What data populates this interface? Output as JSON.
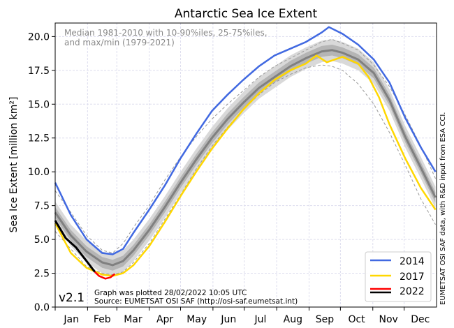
{
  "chart_data": {
    "type": "line",
    "title": "Antarctic Sea Ice Extent",
    "ylabel": "Sea Ice Extent [million km²]",
    "xlabel": "",
    "ylim": [
      0,
      21
    ],
    "xlim_days": [
      0,
      365
    ],
    "grid": true,
    "y_ticks": [
      "0.0",
      "2.5",
      "5.0",
      "7.5",
      "10.0",
      "12.5",
      "15.0",
      "17.5",
      "20.0"
    ],
    "x_tick_labels": [
      "Jan",
      "Feb",
      "Mar",
      "Apr",
      "May",
      "Jun",
      "Jul",
      "Aug",
      "Sep",
      "Oct",
      "Nov",
      "Dec"
    ],
    "climatology_note": [
      "Median 1981-2010 with 10-90%iles, 25-75%iles,",
      "and max/min (1979-2021)"
    ],
    "climatology": {
      "day": [
        0,
        15,
        30,
        45,
        55,
        65,
        75,
        90,
        105,
        120,
        135,
        150,
        165,
        180,
        195,
        210,
        225,
        240,
        255,
        265,
        275,
        290,
        305,
        320,
        335,
        350,
        364
      ],
      "median": [
        7.0,
        5.3,
        4.1,
        3.3,
        3.1,
        3.4,
        4.2,
        5.7,
        7.4,
        9.2,
        10.9,
        12.5,
        13.9,
        15.1,
        16.2,
        17.0,
        17.8,
        18.4,
        18.9,
        19.0,
        18.8,
        18.3,
        17.3,
        15.3,
        12.6,
        10.3,
        8.1
      ],
      "p10": [
        6.2,
        4.5,
        3.3,
        2.5,
        2.3,
        2.6,
        3.4,
        4.9,
        6.6,
        8.4,
        10.1,
        11.7,
        13.1,
        14.3,
        15.4,
        16.2,
        17.0,
        17.6,
        18.1,
        18.2,
        18.0,
        17.5,
        16.5,
        14.5,
        11.8,
        9.5,
        7.3
      ],
      "p25": [
        6.6,
        4.9,
        3.7,
        2.9,
        2.7,
        3.0,
        3.8,
        5.3,
        7.0,
        8.8,
        10.5,
        12.1,
        13.5,
        14.7,
        15.8,
        16.6,
        17.4,
        18.0,
        18.5,
        18.6,
        18.4,
        17.9,
        16.9,
        14.9,
        12.2,
        9.9,
        7.7
      ],
      "p75": [
        7.4,
        5.7,
        4.5,
        3.7,
        3.5,
        3.8,
        4.6,
        6.1,
        7.8,
        9.6,
        11.3,
        12.9,
        14.3,
        15.5,
        16.6,
        17.4,
        18.2,
        18.8,
        19.3,
        19.4,
        19.2,
        18.7,
        17.7,
        15.7,
        13.0,
        10.7,
        8.5
      ],
      "p90": [
        7.8,
        6.1,
        4.9,
        4.1,
        3.9,
        4.2,
        5.0,
        6.5,
        8.2,
        10.0,
        11.7,
        13.3,
        14.7,
        15.9,
        17.0,
        17.8,
        18.6,
        19.2,
        19.7,
        19.8,
        19.6,
        19.1,
        18.1,
        16.1,
        13.4,
        11.1,
        8.9
      ],
      "max": [
        8.6,
        7.0,
        5.3,
        4.2,
        4.0,
        4.7,
        5.9,
        7.5,
        9.4,
        11.1,
        12.6,
        13.9,
        15.0,
        16.0,
        17.0,
        17.8,
        18.4,
        19.0,
        19.6,
        19.8,
        19.5,
        19.0,
        17.9,
        16.3,
        14.2,
        11.9,
        9.5
      ],
      "min": [
        5.6,
        4.3,
        3.0,
        2.5,
        2.4,
        2.6,
        3.3,
        4.7,
        6.5,
        8.3,
        10.2,
        11.9,
        13.3,
        14.6,
        15.7,
        16.6,
        17.2,
        17.7,
        17.9,
        17.8,
        17.5,
        16.5,
        15.0,
        12.9,
        10.5,
        8.0,
        6.1
      ]
    },
    "series": [
      {
        "name": "2014",
        "color": "#4169e1",
        "day": [
          0,
          15,
          30,
          45,
          55,
          65,
          75,
          90,
          105,
          120,
          135,
          150,
          165,
          180,
          195,
          210,
          225,
          240,
          255,
          262,
          275,
          290,
          305,
          320,
          335,
          350,
          364
        ],
        "values": [
          9.2,
          6.8,
          5.0,
          4.0,
          3.9,
          4.3,
          5.5,
          7.2,
          9.0,
          11.0,
          12.8,
          14.5,
          15.7,
          16.8,
          17.8,
          18.6,
          19.1,
          19.6,
          20.3,
          20.7,
          20.2,
          19.4,
          18.3,
          16.6,
          14.0,
          11.8,
          10.0
        ]
      },
      {
        "name": "2017",
        "color": "#ffd700",
        "day": [
          0,
          15,
          30,
          45,
          55,
          65,
          75,
          90,
          105,
          120,
          135,
          150,
          165,
          180,
          195,
          210,
          225,
          240,
          250,
          260,
          275,
          290,
          300,
          310,
          320,
          335,
          350,
          364
        ],
        "values": [
          6.2,
          4.0,
          2.9,
          2.4,
          2.3,
          2.5,
          3.1,
          4.5,
          6.3,
          8.2,
          10.0,
          11.7,
          13.2,
          14.6,
          15.8,
          16.8,
          17.5,
          18.0,
          18.6,
          18.1,
          18.5,
          18.0,
          17.0,
          15.5,
          13.5,
          11.0,
          8.8,
          7.2
        ]
      },
      {
        "name": "2022",
        "color": "#ff0000",
        "recent_color": "#000000",
        "day": [
          0,
          10,
          20,
          30,
          38,
          42,
          48,
          53,
          57
        ],
        "values": [
          6.4,
          5.1,
          4.4,
          3.4,
          2.6,
          2.3,
          2.1,
          2.2,
          2.45
        ]
      }
    ],
    "legend_placement": "bottom-right"
  },
  "annotations": {
    "version": "v2.1",
    "plotted": "Graph was plotted 28/02/2022 10:05 UTC",
    "source": "Source: EUMETSAT OSI SAF (http://osi-saf.eumetsat.int)",
    "credit": "EUMETSAT OSI SAF data, with R&D input from ESA CCI."
  }
}
